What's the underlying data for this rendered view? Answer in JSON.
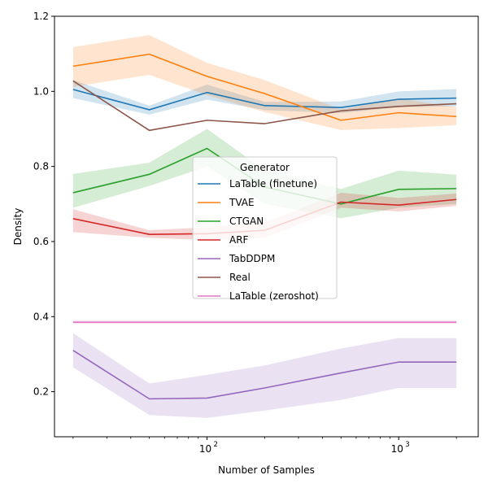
{
  "chart_data": {
    "type": "line",
    "xscale": "log",
    "xlabel": "Number of Samples",
    "ylabel": "Density",
    "xlim": [
      16,
      2600
    ],
    "ylim": [
      0.08,
      1.2
    ],
    "y_ticks": [
      0.2,
      0.4,
      0.6,
      0.8,
      1.0,
      1.2
    ],
    "y_tick_labels": [
      "0.2",
      "0.4",
      "0.6",
      "0.8",
      "1.0",
      "1.2"
    ],
    "x_ticks": [
      100,
      1000
    ],
    "x_tick_labels": [
      "10",
      "10"
    ],
    "x_tick_exponents": [
      "2",
      "3"
    ],
    "grid": false,
    "legend": {
      "title": "Generator",
      "placement": "center"
    },
    "x": [
      20,
      50,
      100,
      200,
      500,
      1000,
      2000
    ],
    "series": [
      {
        "name": "LaTable (finetune)",
        "color": "#1f77b4",
        "values": [
          1.005,
          0.951,
          0.997,
          0.962,
          0.957,
          0.979,
          0.982
        ],
        "lower": [
          0.982,
          0.938,
          0.978,
          0.95,
          0.942,
          0.958,
          0.96
        ],
        "upper": [
          1.03,
          0.962,
          1.018,
          0.972,
          0.973,
          1.0,
          1.006
        ]
      },
      {
        "name": "TVAE",
        "color": "#ff7f0e",
        "values": [
          1.067,
          1.099,
          1.04,
          0.994,
          0.923,
          0.943,
          0.933
        ],
        "lower": [
          1.012,
          1.044,
          0.99,
          0.945,
          0.897,
          0.902,
          0.91
        ],
        "upper": [
          1.118,
          1.15,
          1.076,
          1.03,
          0.952,
          0.981,
          0.958
        ]
      },
      {
        "name": "CTGAN",
        "color": "#2ca02c",
        "values": [
          0.73,
          0.779,
          0.848,
          0.745,
          0.7,
          0.739,
          0.741
        ],
        "lower": [
          0.69,
          0.748,
          0.8,
          0.7,
          0.662,
          0.69,
          0.7
        ],
        "upper": [
          0.78,
          0.81,
          0.9,
          0.79,
          0.74,
          0.789,
          0.778
        ]
      },
      {
        "name": "ARF",
        "color": "#d62728",
        "values": [
          0.661,
          0.619,
          0.621,
          0.63,
          0.705,
          0.697,
          0.712
        ],
        "lower": [
          0.625,
          0.61,
          0.604,
          0.61,
          0.69,
          0.68,
          0.695
        ],
        "upper": [
          0.686,
          0.63,
          0.638,
          0.65,
          0.73,
          0.716,
          0.728
        ]
      },
      {
        "name": "TabDDPM",
        "color": "#9467bd",
        "values": [
          0.31,
          0.181,
          0.183,
          0.21,
          0.25,
          0.279,
          0.279
        ],
        "lower": [
          0.265,
          0.138,
          0.13,
          0.15,
          0.178,
          0.21,
          0.21
        ],
        "upper": [
          0.356,
          0.222,
          0.245,
          0.27,
          0.315,
          0.343,
          0.343
        ]
      },
      {
        "name": "Real",
        "color": "#8c564b",
        "values": [
          1.028,
          0.896,
          0.923,
          0.914,
          0.948,
          0.96,
          0.967
        ],
        "lower": null,
        "upper": null
      },
      {
        "name": "LaTable (zeroshot)",
        "color": "#e377c2",
        "values": [
          0.385,
          0.385,
          0.385,
          0.385,
          0.385,
          0.385,
          0.385
        ],
        "lower": [
          0.381,
          0.381,
          0.381,
          0.381,
          0.381,
          0.381,
          0.381
        ],
        "upper": [
          0.39,
          0.39,
          0.39,
          0.39,
          0.39,
          0.39,
          0.39
        ]
      }
    ]
  }
}
